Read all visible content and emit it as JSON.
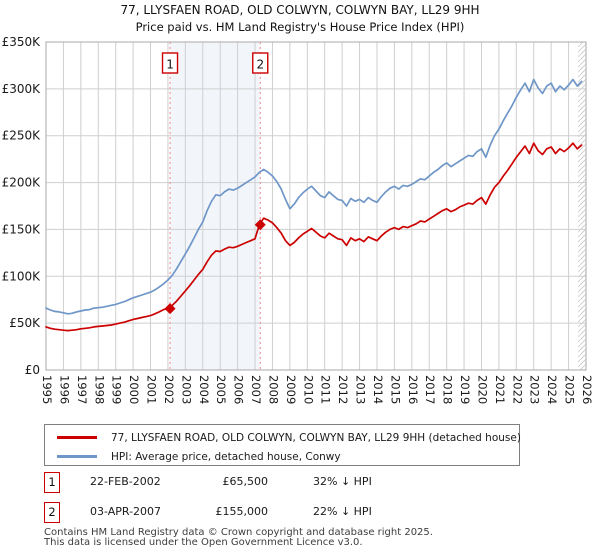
{
  "title": {
    "line1": "77, LLYSFAEN ROAD, OLD COLWYN, COLWYN BAY, LL29 9HH",
    "line2": "Price paid vs. HM Land Registry's House Price Index (HPI)"
  },
  "chart_data": {
    "type": "line",
    "xlabel": "",
    "ylabel": "",
    "xlim": [
      1995,
      2026
    ],
    "ylim": [
      0,
      350
    ],
    "grid": true,
    "legend_position": "below",
    "xticks": [
      1995,
      1996,
      1997,
      1998,
      1999,
      2000,
      2001,
      2002,
      2003,
      2004,
      2005,
      2006,
      2007,
      2008,
      2009,
      2010,
      2011,
      2012,
      2013,
      2014,
      2015,
      2016,
      2017,
      2018,
      2019,
      2020,
      2021,
      2022,
      2023,
      2024,
      2025,
      2026
    ],
    "ytick_values": [
      0,
      50,
      100,
      150,
      200,
      250,
      300,
      350
    ],
    "ytick_labels": [
      "£0",
      "£50K",
      "£100K",
      "£150K",
      "£200K",
      "£250K",
      "£300K",
      "£350K"
    ],
    "value_unit": "GBP thousands",
    "x_start": 1995.0,
    "x_step": 0.25,
    "series": [
      {
        "name": "77, LLYSFAEN ROAD, OLD COLWYN, COLWYN BAY, LL29 9HH (detached house)",
        "color": "#cc0000",
        "values": [
          46,
          44.5,
          43.5,
          43,
          42.5,
          42,
          42.5,
          43,
          44,
          44.5,
          45,
          46,
          46.5,
          47,
          47.5,
          48,
          49,
          50,
          51,
          52.5,
          54,
          55,
          56,
          57,
          58,
          60,
          62,
          64.5,
          65.5,
          69,
          73.5,
          79,
          84.5,
          90,
          96,
          102,
          107.5,
          115.5,
          122.5,
          127,
          126.5,
          129,
          131,
          130.5,
          132,
          134,
          136,
          138,
          140,
          155,
          162,
          160,
          157,
          152,
          146,
          138,
          133,
          136,
          141,
          145,
          148,
          151,
          147,
          143,
          141,
          146,
          143,
          140,
          139,
          133,
          141,
          138,
          140,
          137,
          142,
          140,
          138,
          143,
          147,
          150,
          152,
          150,
          153,
          152,
          154,
          156,
          159,
          158,
          161,
          164,
          167,
          170,
          172,
          169,
          171,
          174,
          176,
          178,
          177,
          181,
          184,
          177,
          187,
          195,
          200,
          207,
          213,
          220,
          227,
          233,
          239,
          231,
          242,
          234,
          230,
          236,
          238,
          231,
          236,
          233,
          237,
          242,
          236,
          240
        ]
      },
      {
        "name": "HPI: Average price, detached house, Conwy",
        "color": "#6e96c8",
        "values": [
          66,
          64,
          62.5,
          62,
          61,
          60,
          60.5,
          62,
          63,
          64,
          64.5,
          66,
          66.5,
          67,
          68,
          69,
          70,
          71.5,
          73,
          75,
          77,
          78.5,
          80,
          81.5,
          83,
          85.5,
          88.5,
          92,
          96,
          101,
          108,
          116,
          124,
          132,
          141,
          150,
          158,
          170,
          180,
          187,
          186,
          190,
          193,
          192,
          194,
          197,
          200,
          203,
          206,
          211,
          214,
          211,
          207,
          201,
          193,
          182,
          172,
          177,
          184,
          189,
          193,
          196,
          191,
          186,
          184,
          190,
          186,
          182,
          181,
          175,
          183,
          180,
          182,
          179,
          184,
          181,
          179,
          185,
          190,
          194,
          196,
          193,
          197,
          196,
          198,
          201,
          204,
          203,
          207,
          211,
          214,
          218,
          221,
          217,
          220,
          223,
          226,
          229,
          228,
          233,
          236,
          227,
          240,
          250,
          257,
          266,
          274,
          282,
          291,
          299,
          306,
          297,
          310,
          301,
          295,
          303,
          306,
          297,
          303,
          299,
          304,
          310,
          303,
          308
        ]
      }
    ],
    "sales": [
      {
        "badge": "1",
        "x": 2002.12,
        "y": 65.5
      },
      {
        "badge": "2",
        "x": 2007.3,
        "y": 155
      }
    ],
    "shaded_band": {
      "from": 2002.12,
      "to": 2007.3,
      "color": "#e8eef8"
    },
    "hatch_from": 2025.55,
    "colors": {
      "grid": "#cfcfcf",
      "plot_border": "#a8a8a8",
      "sale_dashed_line": "#f08888",
      "badge_border": "#cc0000",
      "hatch": "#c4c8cc"
    }
  },
  "legend": {
    "items": [
      {
        "label": "77, LLYSFAEN ROAD, OLD COLWYN, COLWYN BAY, LL29 9HH (detached house)",
        "color": "#cc0000"
      },
      {
        "label": "HPI: Average price, detached house, Conwy",
        "color": "#6e96c8"
      }
    ]
  },
  "table": {
    "rows": [
      {
        "badge": "1",
        "date": "22-FEB-2002",
        "price": "£65,500",
        "vs_hpi": "32% ↓ HPI"
      },
      {
        "badge": "2",
        "date": "03-APR-2007",
        "price": "£155,000",
        "vs_hpi": "22% ↓ HPI"
      }
    ]
  },
  "footer": {
    "line1": "Contains HM Land Registry data © Crown copyright and database right 2025.",
    "line2": "This data is licensed under the Open Government Licence v3.0."
  }
}
